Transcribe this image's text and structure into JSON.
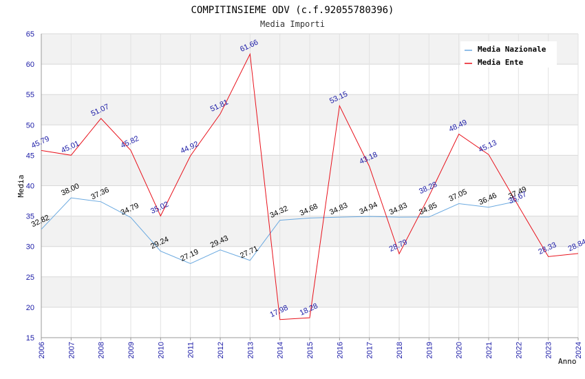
{
  "chart_data": {
    "type": "line",
    "title": "COMPITINSIEME ODV (c.f.92055780396)",
    "subtitle": "Media Importi",
    "xlabel": "Anno",
    "ylabel": "Media",
    "ylim": [
      15,
      65
    ],
    "yticks": [
      "15",
      "20",
      "25",
      "30",
      "35",
      "40",
      "45",
      "50",
      "55",
      "60",
      "65"
    ],
    "categories": [
      "2006",
      "2007",
      "2008",
      "2009",
      "2010",
      "2011",
      "2012",
      "2013",
      "2014",
      "2015",
      "2016",
      "2017",
      "2018",
      "2019",
      "2020",
      "2021",
      "2022",
      "2023",
      "2024"
    ],
    "series": [
      {
        "name": "Media Nazionale",
        "color": "#6aa9e0",
        "label_color": "#000000",
        "values": [
          32.82,
          38.0,
          37.36,
          34.79,
          29.24,
          27.19,
          29.43,
          27.71,
          34.32,
          34.68,
          34.83,
          34.94,
          34.83,
          34.85,
          37.05,
          36.46,
          37.49,
          null,
          null
        ],
        "labels": [
          "32.82",
          "38.00",
          "37.36",
          "34.79",
          "29.24",
          "27.19",
          "29.43",
          "27.71",
          "34.32",
          "34.68",
          "34.83",
          "34.94",
          "34.83",
          "34.85",
          "37.05",
          "36.46",
          "37.49",
          "",
          ""
        ]
      },
      {
        "name": "Media Ente",
        "color": "#e8101a",
        "label_color": "#1a1aa6",
        "values": [
          45.79,
          45.01,
          51.07,
          45.82,
          35.02,
          44.92,
          51.81,
          61.66,
          17.98,
          18.28,
          53.15,
          43.18,
          28.79,
          38.28,
          48.49,
          45.13,
          36.67,
          28.33,
          28.84
        ],
        "labels": [
          "45.79",
          "45.01",
          "51.07",
          "45.82",
          "35.02",
          "44.92",
          "51.81",
          "61.66",
          "17.98",
          "18.28",
          "53.15",
          "43.18",
          "28.79",
          "38.28",
          "48.49",
          "45.13",
          "36.67",
          "28.33",
          "28.84"
        ]
      }
    ],
    "legend_position": "top-right",
    "grid": true
  }
}
